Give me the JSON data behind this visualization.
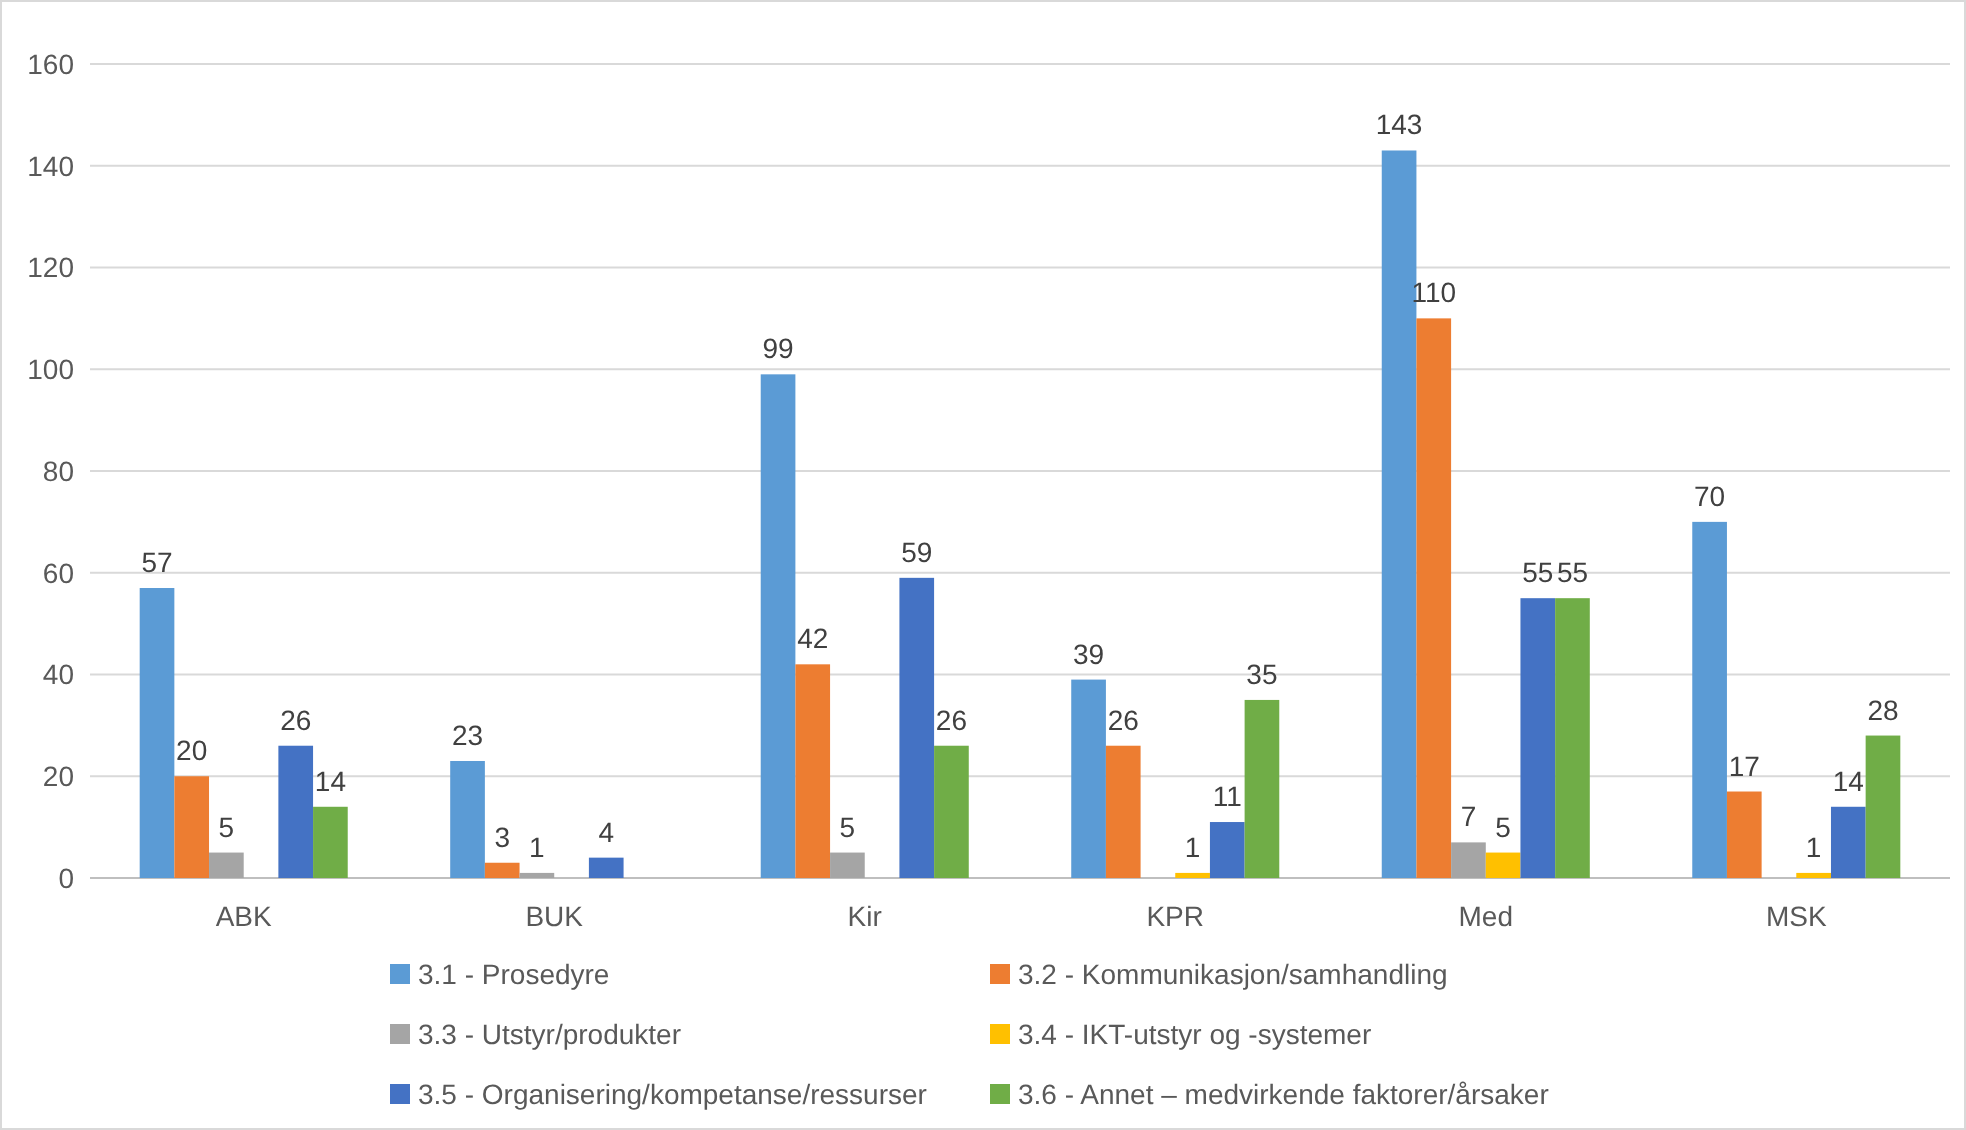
{
  "chart_data": {
    "type": "bar",
    "categories": [
      "ABK",
      "BUK",
      "Kir",
      "KPR",
      "Med",
      "MSK"
    ],
    "series": [
      {
        "name": "3.1 - Prosedyre",
        "color": "#5b9bd5",
        "values": [
          57,
          23,
          99,
          39,
          143,
          70
        ]
      },
      {
        "name": "3.2 - Kommunikasjon/samhandling",
        "color": "#ed7d31",
        "values": [
          20,
          3,
          42,
          26,
          110,
          17
        ]
      },
      {
        "name": "3.3 - Utstyr/produkter",
        "color": "#a5a5a5",
        "values": [
          5,
          1,
          5,
          null,
          7,
          null
        ]
      },
      {
        "name": "3.4 - IKT-utstyr og -systemer",
        "color": "#ffc000",
        "values": [
          null,
          null,
          null,
          1,
          5,
          1
        ]
      },
      {
        "name": "3.5 - Organisering/kompetanse/ressurser",
        "color": "#4472c4",
        "values": [
          26,
          4,
          59,
          11,
          55,
          14
        ]
      },
      {
        "name": "3.6 - Annet – medvirkende faktorer/årsaker",
        "color": "#70ad47",
        "values": [
          14,
          null,
          26,
          35,
          55,
          28
        ]
      }
    ],
    "ylim": [
      0,
      160
    ],
    "yticks": [
      0,
      20,
      40,
      60,
      80,
      100,
      120,
      140,
      160
    ],
    "grid": "y",
    "legend": "bottom",
    "data_labels": true
  }
}
